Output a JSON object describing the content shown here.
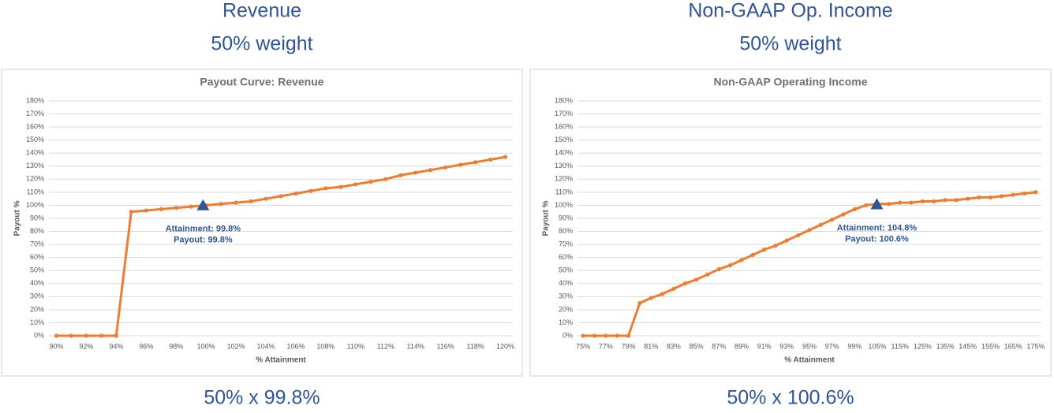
{
  "panels": [
    {
      "heading": "Revenue",
      "weight": "50% weight",
      "formula": "50% x 99.8%"
    },
    {
      "heading": "Non-GAAP Op. Income",
      "weight": "50% weight",
      "formula": "50% x 100.6%"
    }
  ],
  "chart_data": [
    {
      "type": "line",
      "title": "Payout Curve: Revenue",
      "x_label": "% Attainment",
      "y_label": "Payout %",
      "categories": [
        "90%",
        null,
        "92%",
        null,
        "94%",
        null,
        "96%",
        null,
        "98%",
        null,
        "100%",
        null,
        "102%",
        null,
        "104%",
        null,
        "106%",
        null,
        "108%",
        null,
        "110%",
        null,
        "112%",
        null,
        "114%",
        null,
        "116%",
        null,
        "118%",
        null,
        "120%"
      ],
      "x": [
        90,
        91,
        92,
        93,
        94,
        95,
        96,
        97,
        98,
        99,
        100,
        101,
        102,
        103,
        104,
        105,
        106,
        107,
        108,
        109,
        110,
        111,
        112,
        113,
        114,
        115,
        116,
        117,
        118,
        119,
        120
      ],
      "series": [
        {
          "name": "Payout",
          "color": "#ed7d31",
          "values": [
            0,
            0,
            0,
            0,
            0,
            95,
            96,
            97,
            98,
            99,
            100,
            101,
            102,
            103,
            105,
            107,
            109,
            111,
            113,
            114,
            116,
            118,
            120,
            123,
            125,
            127,
            129,
            131,
            133,
            135,
            137
          ]
        }
      ],
      "marker": {
        "x": 99.8,
        "y": 99.8,
        "color": "#2f5597",
        "labels": [
          "Attainment: 99.8%",
          "Payout: 99.8%"
        ]
      },
      "ylim": [
        0,
        180
      ],
      "yticks": [
        {
          "value": 0,
          "label": "0%"
        },
        {
          "value": 10,
          "label": "10%"
        },
        {
          "value": 20,
          "label": "20%"
        },
        {
          "value": 30,
          "label": "30%"
        },
        {
          "value": 40,
          "label": "40%"
        },
        {
          "value": 50,
          "label": "50%"
        },
        {
          "value": 60,
          "label": "60%"
        },
        {
          "value": 70,
          "label": "70%"
        },
        {
          "value": 80,
          "label": "80%"
        },
        {
          "value": 90,
          "label": "90%"
        },
        {
          "value": 100,
          "label": "100%"
        },
        {
          "value": 110,
          "label": "110%"
        },
        {
          "value": 120,
          "label": "120%"
        },
        {
          "value": 130,
          "label": "130%"
        },
        {
          "value": 140,
          "label": "140%"
        },
        {
          "value": 150,
          "label": "150%"
        },
        {
          "value": 160,
          "label": "160%"
        },
        {
          "value": 170,
          "label": "170%"
        },
        {
          "value": 180,
          "label": "180%"
        }
      ],
      "grid": true
    },
    {
      "type": "line",
      "title": "Non-GAAP Operating Income",
      "x_label": "% Attainment",
      "y_label": "Payout %",
      "categories": [
        "75%",
        null,
        "77%",
        null,
        "79%",
        null,
        "81%",
        null,
        "83%",
        null,
        "85%",
        null,
        "87%",
        null,
        "89%",
        null,
        "91%",
        null,
        "93%",
        null,
        "95%",
        null,
        "97%",
        null,
        "99%",
        null,
        "105%",
        null,
        "115%",
        null,
        "125%",
        null,
        "135%",
        null,
        "145%",
        null,
        "155%",
        null,
        "165%",
        null,
        "175%"
      ],
      "x": [
        75,
        76,
        77,
        78,
        79,
        80,
        81,
        82,
        83,
        84,
        85,
        86,
        87,
        88,
        89,
        90,
        91,
        92,
        93,
        94,
        95,
        96,
        97,
        98,
        99,
        100,
        105,
        110,
        115,
        120,
        125,
        130,
        135,
        140,
        145,
        150,
        155,
        160,
        165,
        170,
        175
      ],
      "series": [
        {
          "name": "Payout",
          "color": "#ed7d31",
          "values": [
            0,
            0,
            0,
            0,
            0,
            25,
            29,
            32,
            36,
            40,
            43,
            47,
            51,
            54,
            58,
            62,
            66,
            69,
            73,
            77,
            81,
            85,
            89,
            93,
            97,
            100,
            101,
            101,
            102,
            102,
            103,
            103,
            104,
            104,
            105,
            106,
            106,
            107,
            108,
            109,
            110
          ]
        }
      ],
      "marker": {
        "x": 104.8,
        "y": 100.6,
        "color": "#2f5597",
        "labels": [
          "Attainment: 104.8%",
          "Payout: 100.6%"
        ]
      },
      "ylim": [
        0,
        180
      ],
      "yticks": [
        {
          "value": 0,
          "label": "0%"
        },
        {
          "value": 10,
          "label": "10%"
        },
        {
          "value": 20,
          "label": "20%"
        },
        {
          "value": 30,
          "label": "30%"
        },
        {
          "value": 40,
          "label": "40%"
        },
        {
          "value": 50,
          "label": "50%"
        },
        {
          "value": 60,
          "label": "60%"
        },
        {
          "value": 70,
          "label": "70%"
        },
        {
          "value": 80,
          "label": "80%"
        },
        {
          "value": 90,
          "label": "90%"
        },
        {
          "value": 100,
          "label": "100%"
        },
        {
          "value": 110,
          "label": "110%"
        },
        {
          "value": 120,
          "label": "120%"
        },
        {
          "value": 130,
          "label": "130%"
        },
        {
          "value": 140,
          "label": "140%"
        },
        {
          "value": 150,
          "label": "150%"
        },
        {
          "value": 160,
          "label": "160%"
        },
        {
          "value": 170,
          "label": "170%"
        },
        {
          "value": 180,
          "label": "180%"
        }
      ],
      "grid": true
    }
  ]
}
